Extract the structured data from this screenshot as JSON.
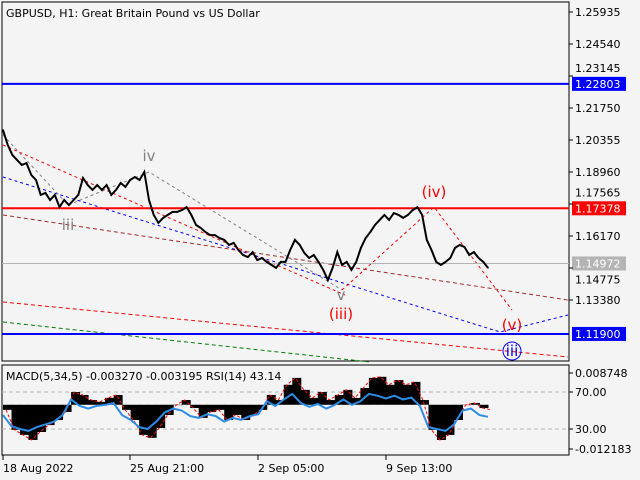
{
  "header": {
    "title": "GBPUSD, H1:  Great Britain Pound vs US Dollar"
  },
  "indicator_header": "MACD(5,34,5) -0.003270 -0.003195 RSI(14) 43.14",
  "colors": {
    "price": "#000000",
    "support": "#0000ff",
    "resistance": "#ff0000",
    "current": "#b4b4b4",
    "rsi": "#2d8ce6",
    "macd_signal": "#ff0000",
    "wave_red": "#ff0000",
    "wave_gray": "#808080"
  },
  "chart_data": [
    {
      "type": "line",
      "title": "GBPUSD, H1",
      "price_ticks": [
        "1.25935",
        "1.24540",
        "1.23145",
        "1.21750",
        "1.20355",
        "1.18960",
        "1.17565",
        "1.16170",
        "1.14775",
        "1.13380"
      ],
      "ylim": [
        1.10765,
        1.26327
      ],
      "time_ticks": [
        "18 Aug 2022",
        "25 Aug 21:00",
        "2 Sep 05:00",
        "9 Sep 13:00"
      ],
      "close": [
        1.2079,
        1.2014,
        1.197,
        1.1948,
        1.1927,
        1.1935,
        1.1883,
        1.1861,
        1.1796,
        1.1805,
        1.1774,
        1.1796,
        1.1743,
        1.1774,
        1.1752,
        1.1774,
        1.1796,
        1.187,
        1.1839,
        1.1818,
        1.1839,
        1.1818,
        1.1839,
        1.1796,
        1.1818,
        1.1848,
        1.1831,
        1.1861,
        1.1874,
        1.1861,
        1.1896,
        1.1774,
        1.1709,
        1.1674,
        1.1696,
        1.1709,
        1.1722,
        1.1722,
        1.173,
        1.1743,
        1.1709,
        1.1665,
        1.1652,
        1.1634,
        1.1621,
        1.1621,
        1.1608,
        1.16,
        1.1578,
        1.1587,
        1.1556,
        1.1534,
        1.1525,
        1.1547,
        1.1512,
        1.1521,
        1.1504,
        1.1491,
        1.1478,
        1.1504,
        1.1504,
        1.1556,
        1.16,
        1.1578,
        1.1543,
        1.1521,
        1.1534,
        1.1504,
        1.1469,
        1.1425,
        1.1478,
        1.1547,
        1.1491,
        1.1504,
        1.1469,
        1.1504,
        1.1565,
        1.1608,
        1.1634,
        1.1665,
        1.1687,
        1.1709,
        1.1687,
        1.1717,
        1.1709,
        1.1696,
        1.1709,
        1.173,
        1.1743,
        1.1709,
        1.16,
        1.1556,
        1.1504,
        1.1491,
        1.1504,
        1.1521,
        1.1565,
        1.1578,
        1.1569,
        1.1534,
        1.1547,
        1.1521,
        1.1504,
        1.1478
      ],
      "levels": [
        {
          "value": 1.22803,
          "label": "1.22803",
          "color": "#0000ff"
        },
        {
          "value": 1.17378,
          "label": "1.17378",
          "color": "#ff0000"
        },
        {
          "value": 1.119,
          "label": "1.11900",
          "color": "#0000ff"
        },
        {
          "value": 1.14972,
          "label": "1.14972",
          "color": "#b4b4b4"
        }
      ],
      "wave_labels": [
        {
          "text": "iii",
          "color": "#808080"
        },
        {
          "text": "iv",
          "color": "#808080"
        },
        {
          "text": "v",
          "color": "#808080"
        },
        {
          "text": "(iii)",
          "color": "#ff0000"
        },
        {
          "text": "(iv)",
          "color": "#ff0000"
        },
        {
          "text": "(v)",
          "color": "#ff0000"
        },
        {
          "text": "iii",
          "color": "#0000ff",
          "circled": true
        }
      ]
    },
    {
      "type": "line",
      "title": "MACD(5,34,5) / RSI(14)",
      "ticks": [
        "0.008748",
        "70.00",
        "30.00",
        "-0.012183"
      ],
      "macd_range": [
        -0.012183,
        0.008748
      ],
      "rsi_levels": [
        70,
        30
      ],
      "macd_histogram": [
        -0.0014,
        -0.0069,
        -0.0083,
        -0.0097,
        -0.0075,
        -0.0056,
        -0.0042,
        -0.002,
        0.0035,
        0.0027,
        0.0013,
        0.0008,
        0.0019,
        0.0027,
        -0.0014,
        -0.0042,
        -0.0083,
        -0.0091,
        -0.0064,
        -0.0028,
        -0.0001,
        0.0013,
        -0.0009,
        -0.0036,
        -0.002,
        -0.0014,
        -0.0042,
        -0.0028,
        -0.0042,
        -0.0028,
        -0.0014,
        0.0027,
        0.0013,
        0.0055,
        0.0074,
        0.0041,
        0.0019,
        0.0035,
        0.0013,
        0.0027,
        0.0041,
        0.0019,
        0.0046,
        0.0074,
        0.0077,
        0.0055,
        0.0068,
        0.0055,
        0.0063,
        0.0013,
        -0.0069,
        -0.0097,
        -0.0083,
        -0.0042,
        -0.0001,
        0.0005,
        -0.0009,
        -0.0014
      ],
      "rsi": [
        45,
        33,
        30,
        28,
        32,
        35,
        38,
        45,
        62,
        55,
        52,
        55,
        56,
        58,
        45,
        40,
        32,
        30,
        38,
        48,
        52,
        50,
        44,
        42,
        46,
        44,
        38,
        42,
        40,
        44,
        46,
        60,
        55,
        62,
        68,
        58,
        54,
        57,
        52,
        56,
        62,
        56,
        60,
        68,
        66,
        63,
        66,
        62,
        64,
        55,
        32,
        30,
        28,
        35,
        50,
        52,
        45,
        43.14
      ]
    }
  ]
}
